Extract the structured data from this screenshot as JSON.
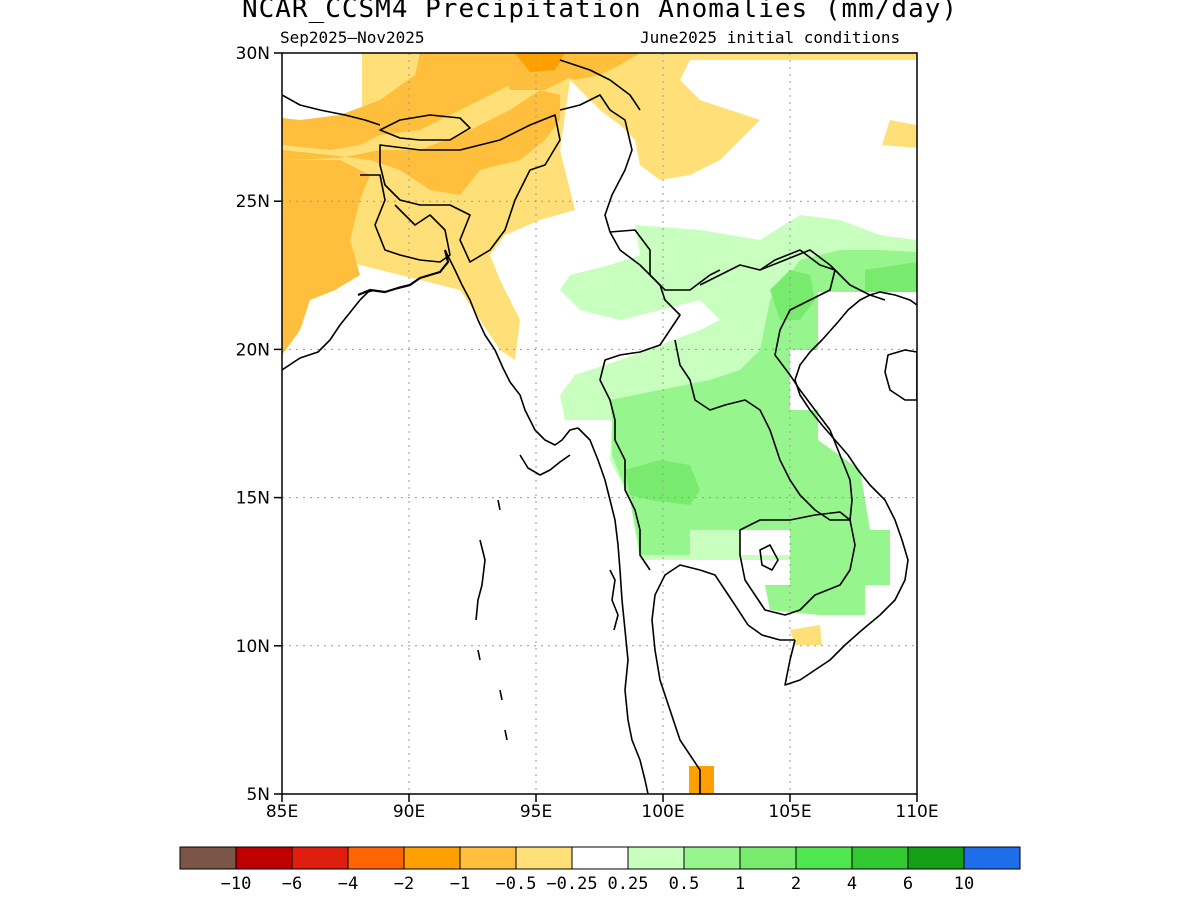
{
  "title": "NCAR_CCSM4 Precipitation Anomalies (mm/day)",
  "subtitle_left": "Sep2025—Nov2025",
  "subtitle_right": "June2025 initial conditions",
  "axes": {
    "lon_ticks": [
      "85E",
      "90E",
      "95E",
      "100E",
      "105E",
      "110E"
    ],
    "lat_ticks": [
      "5N",
      "10N",
      "15N",
      "20N",
      "25N",
      "30N"
    ],
    "lon_range": [
      85,
      110
    ],
    "lat_range": [
      5,
      30
    ],
    "grid": "dotted"
  },
  "colorbar": {
    "colors": [
      "#7a5548",
      "#c00000",
      "#e01e10",
      "#ff6400",
      "#ffa000",
      "#ffbe3c",
      "#ffe078",
      "#ffffff",
      "#c8ffbe",
      "#96f58c",
      "#78eb6e",
      "#50e650",
      "#32c832",
      "#14a014",
      "#1e6eeb"
    ],
    "labels": [
      "−10",
      "−6",
      "−4",
      "−2",
      "−1",
      "−0.5",
      "−0.25",
      "0.25",
      "0.5",
      "1",
      "2",
      "4",
      "6",
      "10"
    ]
  },
  "anomaly_regions": [
    {
      "level": "-0.5",
      "color": "#ffbe3c",
      "area": "northeast India / Bangladesh / upper Myanmar"
    },
    {
      "level": "-0.25",
      "color": "#ffe078",
      "area": "Bhutan / northeast India / south China fringe"
    },
    {
      "level": "0.25",
      "color": "#c8ffbe",
      "area": "southern China / northern Myanmar / Laos"
    },
    {
      "level": "0.5",
      "color": "#96f58c",
      "area": "Thailand / Laos / Cambodia"
    },
    {
      "level": "1",
      "color": "#78eb6e",
      "area": "central Thailand / Vietnam"
    },
    {
      "level": "-1",
      "color": "#ffa000",
      "area": "southern Thailand spot"
    }
  ]
}
